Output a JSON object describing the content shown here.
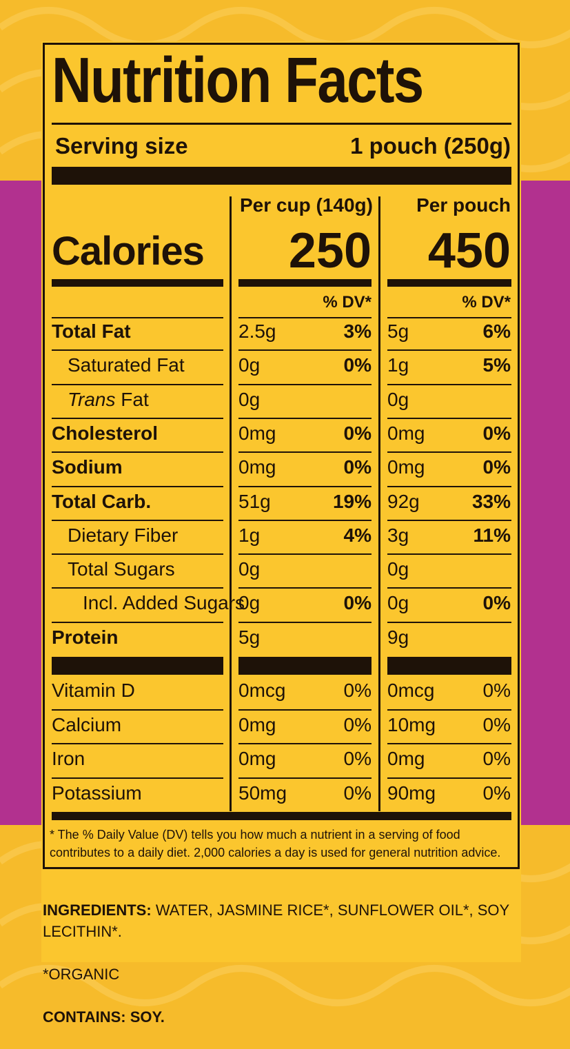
{
  "label": {
    "title": "Nutrition Facts",
    "serving_size_label": "Serving size",
    "serving_size_value": "1 pouch (250g)",
    "calories_label": "Calories",
    "columns": [
      {
        "header": "Per cup (140g)",
        "calories": "250",
        "dv_header": "% DV*"
      },
      {
        "header": "Per pouch",
        "calories": "450",
        "dv_header": "% DV*"
      }
    ],
    "rows": [
      {
        "name": "Total Fat",
        "style": "bold",
        "indent": 0,
        "cup_amt": "2.5g",
        "cup_dv": "3%",
        "pouch_amt": "5g",
        "pouch_dv": "6%"
      },
      {
        "name": "Saturated Fat",
        "style": "regular",
        "indent": 1,
        "cup_amt": "0g",
        "cup_dv": "0%",
        "pouch_amt": "1g",
        "pouch_dv": "5%"
      },
      {
        "name_italic": "Trans",
        "name": " Fat",
        "style": "regular",
        "indent": 1,
        "cup_amt": "0g",
        "cup_dv": "",
        "pouch_amt": "0g",
        "pouch_dv": ""
      },
      {
        "name": "Cholesterol",
        "style": "bold",
        "indent": 0,
        "cup_amt": "0mg",
        "cup_dv": "0%",
        "pouch_amt": "0mg",
        "pouch_dv": "0%"
      },
      {
        "name": "Sodium",
        "style": "bold",
        "indent": 0,
        "cup_amt": "0mg",
        "cup_dv": "0%",
        "pouch_amt": "0mg",
        "pouch_dv": "0%"
      },
      {
        "name": "Total Carb.",
        "style": "bold",
        "indent": 0,
        "cup_amt": "51g",
        "cup_dv": "19%",
        "pouch_amt": "92g",
        "pouch_dv": "33%"
      },
      {
        "name": "Dietary Fiber",
        "style": "regular",
        "indent": 1,
        "cup_amt": "1g",
        "cup_dv": "4%",
        "pouch_amt": "3g",
        "pouch_dv": "11%"
      },
      {
        "name": "Total Sugars",
        "style": "regular",
        "indent": 1,
        "cup_amt": "0g",
        "cup_dv": "",
        "pouch_amt": "0g",
        "pouch_dv": ""
      },
      {
        "name": "Incl. Added Sugars",
        "style": "regular",
        "indent": 2,
        "cup_amt": "0g",
        "cup_dv": "0%",
        "pouch_amt": "0g",
        "pouch_dv": "0%"
      },
      {
        "name": "Protein",
        "style": "bold",
        "indent": 0,
        "cup_amt": "5g",
        "cup_dv": "",
        "pouch_amt": "9g",
        "pouch_dv": ""
      }
    ],
    "vitamins": [
      {
        "name": "Vitamin D",
        "cup_amt": "0mcg",
        "cup_dv": "0%",
        "pouch_amt": "0mcg",
        "pouch_dv": "0%"
      },
      {
        "name": "Calcium",
        "cup_amt": "0mg",
        "cup_dv": "0%",
        "pouch_amt": "10mg",
        "pouch_dv": "0%"
      },
      {
        "name": "Iron",
        "cup_amt": "0mg",
        "cup_dv": "0%",
        "pouch_amt": "0mg",
        "pouch_dv": "0%"
      },
      {
        "name": "Potassium",
        "cup_amt": "50mg",
        "cup_dv": "0%",
        "pouch_amt": "90mg",
        "pouch_dv": "0%"
      }
    ],
    "footnote": "*  The % Daily Value (DV) tells you how much a nutrient in a serving of food contributes to a daily diet. 2,000 calories a day is used for general nutrition advice."
  },
  "ingredients": {
    "label": "INGREDIENTS:",
    "text": "WATER, JASMINE RICE*, SUNFLOWER OIL*, SOY LECITHIN*.",
    "organic_note": "*ORGANIC",
    "contains_label": "CONTAINS: SOY."
  },
  "colors": {
    "background_yellow": "#f6bb2b",
    "label_yellow": "#fbc62e",
    "purple": "#b2318f",
    "ink": "#1e1208"
  }
}
